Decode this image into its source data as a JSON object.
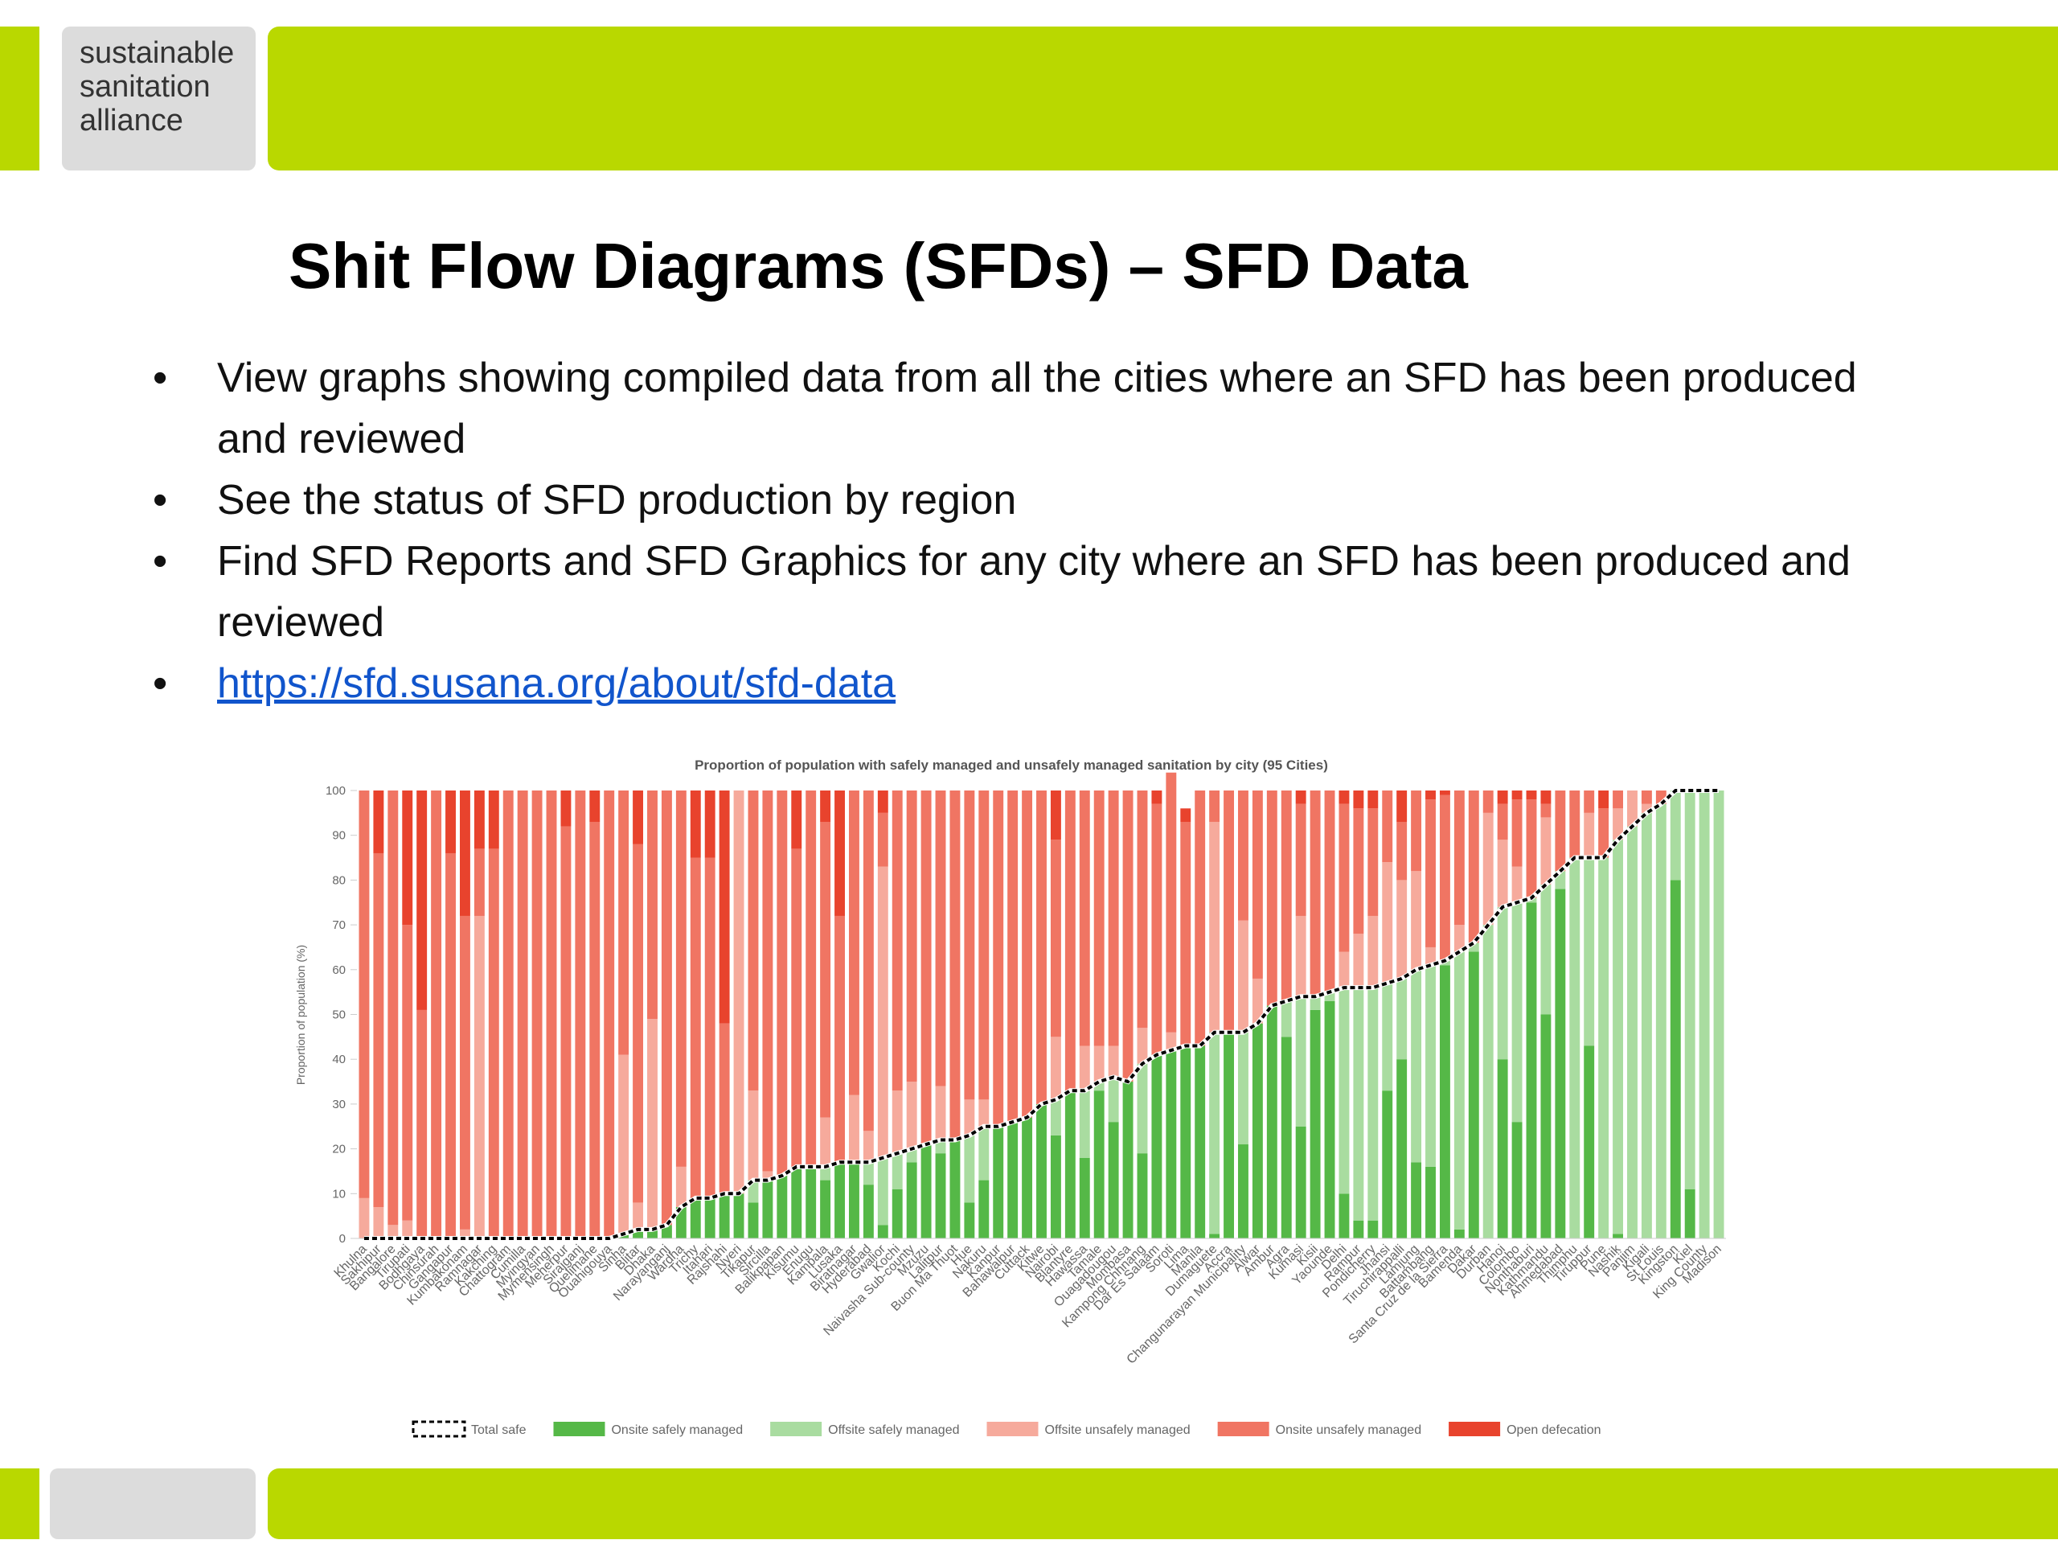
{
  "header": {
    "logo": [
      "sustainable",
      "sanitation",
      "alliance"
    ]
  },
  "title": "Shit Flow Diagrams (SFDs) – SFD Data",
  "bullets": [
    "View graphs showing compiled data from all the cities where an SFD has been produced and reviewed",
    "See the status of SFD production by region",
    "Find SFD Reports and SFD Graphics for any city where an SFD has been produced and reviewed"
  ],
  "link": "https://sfd.susana.org/about/sfd-data",
  "chart_data": {
    "type": "bar",
    "stacked": true,
    "title": "Proportion of population with safely managed and unsafely managed sanitation by city (95 Cities)",
    "y_label": "Proportion of population (%)",
    "ylim": [
      0,
      100
    ],
    "yticks": [
      0,
      10,
      20,
      30,
      40,
      50,
      60,
      70,
      80,
      90,
      100
    ],
    "grid": false,
    "legend": "bottom",
    "categories": [
      "Khulna",
      "Sakhipur",
      "Bangalore",
      "Tirupati",
      "Bodhgaya",
      "Chinsurah",
      "Gangapur",
      "Kumbakonam",
      "Ramnagar",
      "Kakching",
      "Chattogram",
      "Cumilla",
      "Myingyan",
      "Mymensingh",
      "Meherpur",
      "Sirajganj",
      "Quelimane",
      "Ouahigouya",
      "Sinha",
      "Blitar",
      "Dhaka",
      "Narayanganj",
      "Wardha",
      "Trichy",
      "Itahari",
      "Rajshahi",
      "Nyeri",
      "Tikapur",
      "Sircilla",
      "Balikpapan",
      "Kisumu",
      "Enugu",
      "Kampala",
      "Lusaka",
      "Biratnagar",
      "Hyderabad",
      "Gwalior",
      "Kochi",
      "Naivasha Sub-county",
      "Mzuzu",
      "Lalitpur",
      "Buon Ma Thuot",
      "Hue",
      "Nakuru",
      "Kanpur",
      "Bahawalpur",
      "Cuttack",
      "Kitwe",
      "Nairobi",
      "Blantyre",
      "Hawassa",
      "Tamale",
      "Ouagadougou",
      "Mombasa",
      "Kampong Chhnang",
      "Dar Es Salaam",
      "Soroti",
      "Lima",
      "Manila",
      "Dumaguete",
      "Accra",
      "Changunarayan Municipality",
      "Alwar",
      "Ambur",
      "Agra",
      "Kumasi",
      "Kisii",
      "Yaounde",
      "Delhi",
      "Rampur",
      "Pondicherry",
      "Jhansi",
      "Tiruchirappalli",
      "Lamjung",
      "Battambang",
      "Santa Cruz de la Sierra",
      "Bamenda",
      "Dakar",
      "Durban",
      "Hanoi",
      "Colombo",
      "Nonthaburi",
      "Kathmandu",
      "Ahmedabad",
      "Thimphu",
      "Tiruppur",
      "Pune",
      "Nashik",
      "Panjim",
      "Kigali",
      "St Louis",
      "Kingston",
      "Kiel",
      "King County",
      "Madison"
    ],
    "series": [
      {
        "name": "Total safe",
        "type": "line",
        "color": "#000000",
        "values": [
          0,
          0,
          0,
          0,
          0,
          0,
          0,
          0,
          0,
          0,
          0,
          0,
          0,
          0,
          0,
          0,
          0,
          0,
          1,
          2,
          2,
          3,
          7,
          9,
          9,
          10,
          10,
          13,
          13,
          14,
          16,
          16,
          16,
          17,
          17,
          17,
          18,
          19,
          20,
          21,
          22,
          22,
          23,
          25,
          25,
          26,
          27,
          30,
          31,
          33,
          33,
          35,
          36,
          35,
          39,
          41,
          42,
          43,
          43,
          46,
          46,
          46,
          48,
          52,
          53,
          54,
          54,
          55,
          56,
          56,
          56,
          57,
          58,
          60,
          61,
          62,
          64,
          66,
          70,
          74,
          75,
          76,
          79,
          82,
          85,
          85,
          85,
          89,
          92,
          95,
          97,
          100,
          100,
          100,
          100
        ]
      },
      {
        "name": "Onsite safely managed",
        "color": "#55b847",
        "values": [
          0,
          0,
          0,
          0,
          0,
          0,
          0,
          0,
          0,
          0,
          0,
          0,
          0,
          0,
          0,
          0,
          0,
          0,
          1,
          2,
          2,
          3,
          7,
          9,
          9,
          10,
          10,
          8,
          13,
          14,
          16,
          16,
          13,
          17,
          17,
          12,
          3,
          11,
          17,
          21,
          19,
          22,
          8,
          13,
          25,
          26,
          27,
          30,
          23,
          33,
          18,
          33,
          26,
          35,
          19,
          41,
          42,
          43,
          43,
          1,
          46,
          21,
          48,
          52,
          45,
          25,
          51,
          53,
          10,
          4,
          4,
          33,
          40,
          17,
          16,
          61,
          2,
          64,
          0,
          40,
          26,
          75,
          50,
          78,
          0,
          43,
          0,
          1,
          0,
          0,
          0,
          80,
          11,
          0,
          0
        ]
      },
      {
        "name": "Offsite safely managed",
        "color": "#a9dca0",
        "values": [
          0,
          0,
          0,
          0,
          0,
          0,
          0,
          0,
          0,
          0,
          0,
          0,
          0,
          0,
          0,
          0,
          0,
          0,
          0,
          0,
          0,
          0,
          0,
          0,
          0,
          0,
          0,
          5,
          0,
          0,
          0,
          0,
          3,
          0,
          0,
          5,
          15,
          8,
          3,
          0,
          3,
          0,
          15,
          12,
          0,
          0,
          0,
          0,
          8,
          0,
          15,
          2,
          10,
          0,
          20,
          0,
          0,
          0,
          0,
          45,
          0,
          25,
          0,
          0,
          8,
          29,
          3,
          2,
          46,
          52,
          52,
          24,
          18,
          43,
          45,
          1,
          62,
          2,
          70,
          34,
          49,
          1,
          29,
          4,
          85,
          42,
          85,
          88,
          92,
          95,
          97,
          20,
          89,
          100,
          100
        ]
      },
      {
        "name": "Offsite unsafely managed",
        "color": "#f6aa9c",
        "values": [
          9,
          7,
          3,
          4,
          0,
          0,
          0,
          2,
          72,
          0,
          0,
          0,
          0,
          0,
          0,
          0,
          0,
          0,
          40,
          6,
          47,
          0,
          9,
          0,
          0,
          0,
          90,
          20,
          2,
          0,
          0,
          0,
          11,
          0,
          15,
          7,
          65,
          14,
          15,
          0,
          12,
          0,
          8,
          6,
          0,
          0,
          0,
          0,
          14,
          0,
          10,
          8,
          7,
          0,
          8,
          0,
          4,
          0,
          0,
          47,
          0,
          25,
          10,
          0,
          0,
          18,
          0,
          0,
          8,
          12,
          16,
          27,
          22,
          22,
          4,
          0,
          6,
          0,
          25,
          15,
          8,
          0,
          15,
          0,
          0,
          10,
          0,
          7,
          8,
          2,
          0,
          0,
          0,
          0,
          0
        ]
      },
      {
        "name": "Onsite unsafely managed",
        "color": "#f07563",
        "values": [
          91,
          79,
          97,
          66,
          51,
          100,
          86,
          70,
          15,
          87,
          100,
          100,
          100,
          100,
          92,
          100,
          93,
          100,
          59,
          80,
          51,
          97,
          84,
          76,
          76,
          38,
          0,
          67,
          85,
          86,
          71,
          84,
          66,
          55,
          68,
          76,
          12,
          67,
          65,
          79,
          66,
          78,
          69,
          69,
          75,
          74,
          73,
          70,
          44,
          67,
          57,
          57,
          57,
          65,
          53,
          56,
          58,
          50,
          57,
          7,
          54,
          29,
          42,
          48,
          47,
          25,
          46,
          45,
          33,
          28,
          24,
          16,
          13,
          18,
          33,
          37,
          30,
          34,
          5,
          8,
          15,
          22,
          3,
          18,
          15,
          5,
          11,
          4,
          0,
          3,
          3,
          0,
          0,
          0,
          0
        ]
      },
      {
        "name": "Open defecation",
        "color": "#e8432d",
        "values": [
          0,
          14,
          0,
          30,
          49,
          0,
          14,
          28,
          13,
          13,
          0,
          0,
          0,
          0,
          8,
          0,
          7,
          0,
          0,
          12,
          0,
          0,
          0,
          15,
          15,
          52,
          0,
          0,
          0,
          0,
          13,
          0,
          7,
          28,
          0,
          0,
          5,
          0,
          0,
          0,
          0,
          0,
          0,
          0,
          0,
          0,
          0,
          0,
          11,
          0,
          0,
          0,
          0,
          0,
          0,
          3,
          0,
          3,
          0,
          0,
          0,
          0,
          0,
          0,
          0,
          3,
          0,
          0,
          3,
          4,
          4,
          0,
          7,
          0,
          2,
          1,
          0,
          0,
          0,
          3,
          2,
          2,
          3,
          0,
          0,
          0,
          4,
          0,
          0,
          0,
          0,
          0,
          0,
          0,
          0
        ]
      }
    ]
  }
}
